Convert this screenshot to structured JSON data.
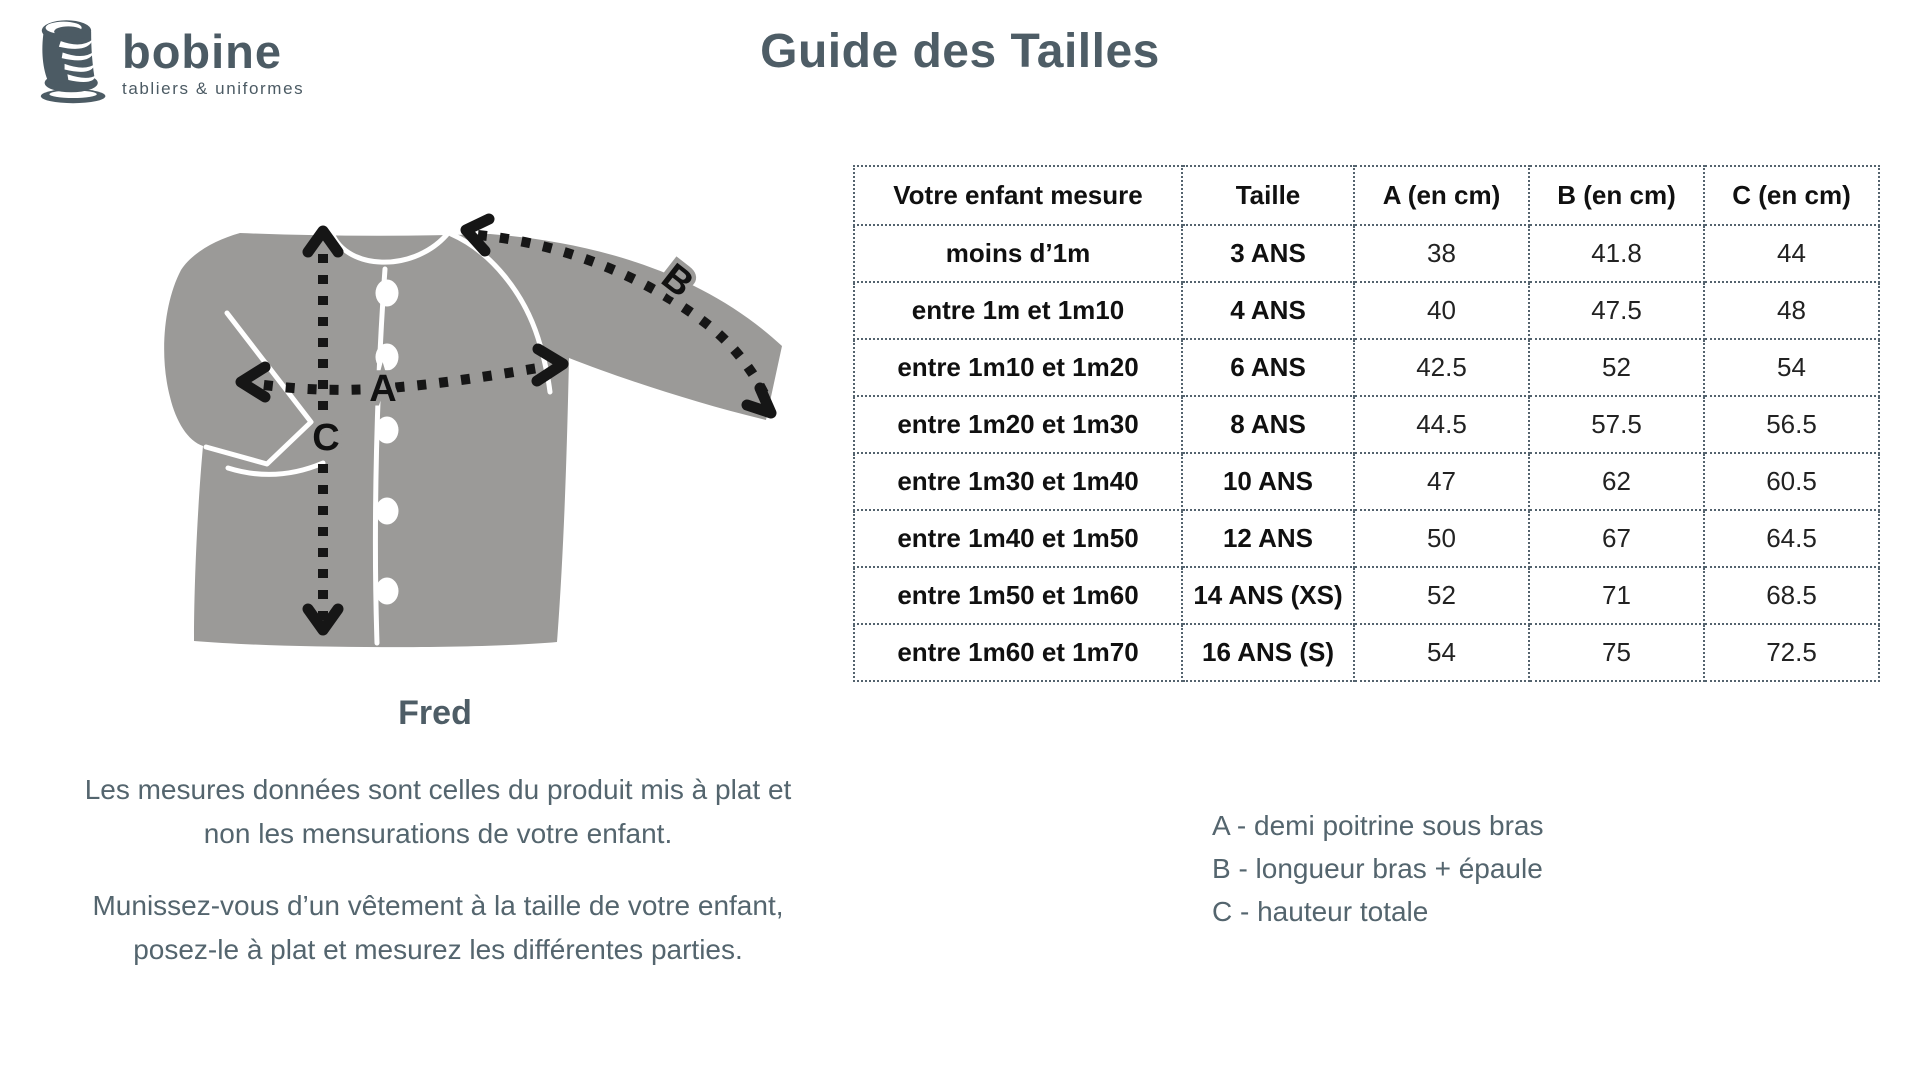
{
  "brand": {
    "name": "bobine",
    "tagline": "tabliers & uniformes"
  },
  "page_title": "Guide des Tailles",
  "product_name": "Fred",
  "diagram": {
    "labels": {
      "a": "A",
      "b": "B",
      "c": "C"
    }
  },
  "size_table": {
    "headers": [
      "Votre enfant mesure",
      "Taille",
      "A (en cm)",
      "B (en cm)",
      "C (en cm)"
    ],
    "rows": [
      [
        "moins d’1m",
        "3 ANS",
        "38",
        "41.8",
        "44"
      ],
      [
        "entre 1m et 1m10",
        "4 ANS",
        "40",
        "47.5",
        "48"
      ],
      [
        "entre 1m10 et 1m20",
        "6 ANS",
        "42.5",
        "52",
        "54"
      ],
      [
        "entre 1m20 et 1m30",
        "8 ANS",
        "44.5",
        "57.5",
        "56.5"
      ],
      [
        "entre 1m30 et 1m40",
        "10 ANS",
        "47",
        "62",
        "60.5"
      ],
      [
        "entre 1m40 et 1m50",
        "12 ANS",
        "50",
        "67",
        "64.5"
      ],
      [
        "entre 1m50 et 1m60",
        "14 ANS (XS)",
        "52",
        "71",
        "68.5"
      ],
      [
        "entre 1m60 et 1m70",
        "16 ANS (S)",
        "54",
        "75",
        "72.5"
      ]
    ]
  },
  "notes": [
    {
      "line1": "Les mesures données sont celles du produit mis à plat et",
      "line2": "non les mensurations de votre enfant."
    },
    {
      "line1": "Munissez-vous d’un vêtement à la taille de votre enfant,",
      "line2": "posez-le à plat et mesurez les différentes parties."
    }
  ],
  "measure_legend": [
    "A - demi poitrine sous bras",
    "B - longueur bras + épaule",
    "C - hauteur totale"
  ],
  "colors": {
    "heading": "#4e5d66",
    "body_text": "#54656e",
    "table_border": "#54636e",
    "table_text": "#141414",
    "garment_gray": "#9b9a98",
    "measure_line": "#161616",
    "logo": "#4c5b64"
  }
}
